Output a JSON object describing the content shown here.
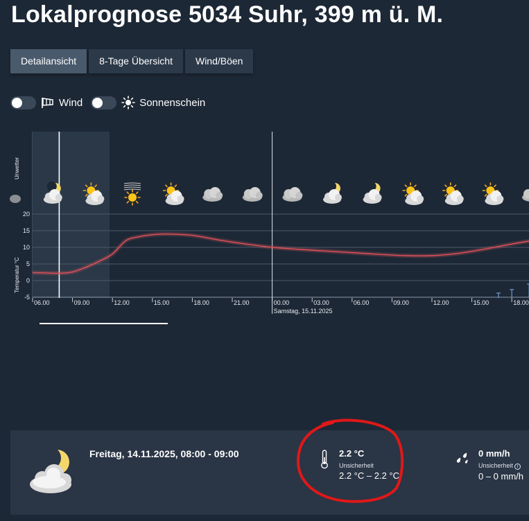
{
  "header": {
    "title": "Lokalprognose 5034 Suhr, 399 m ü. M."
  },
  "tabs": [
    {
      "label": "Detailansicht",
      "active": true
    },
    {
      "label": "8-Tage Übersicht",
      "active": false
    },
    {
      "label": "Wind/Böen",
      "active": false
    }
  ],
  "toggles": [
    {
      "label": "Wind",
      "icon": "windsock-icon",
      "on": false
    },
    {
      "label": "Sonnenschein",
      "icon": "sun-icon",
      "on": false
    }
  ],
  "chart_data": {
    "type": "line",
    "ylabel": "Temperatur °C",
    "row_label": "Unwetter",
    "yticks": [
      "20",
      "15",
      "10",
      "5",
      "0",
      "-5"
    ],
    "ylim": [
      -5,
      22
    ],
    "x_unit": "hours since Friday 06:00",
    "xticks": [
      "06.00",
      "09.00",
      "12.00",
      "15.00",
      "18.00",
      "21.00",
      "00.00",
      "03.00",
      "06.00",
      "09.00",
      "12.00",
      "15.00",
      "18.00"
    ],
    "day_label": "Samstag, 15.11.2025",
    "series": [
      {
        "name": "Temperatur",
        "x": [
          0,
          1,
          2,
          3,
          4,
          5,
          6,
          7,
          8,
          9,
          10,
          12,
          14,
          16,
          18,
          20,
          22,
          24,
          26,
          28,
          30,
          32,
          34,
          36,
          38,
          40,
          42,
          44,
          46,
          48
        ],
        "y": [
          2.4,
          2.3,
          2.2,
          2.6,
          4.0,
          5.8,
          8.0,
          12.0,
          13.2,
          13.8,
          14.0,
          13.6,
          12.2,
          11.0,
          10.0,
          9.4,
          8.9,
          8.4,
          7.9,
          7.5,
          7.5,
          8.2,
          9.5,
          11.0,
          12.3,
          13.2,
          13.3,
          12.9,
          11.8,
          10.8
        ]
      }
    ],
    "current_hour_x": 2,
    "weather_icons": [
      {
        "x": 1.5,
        "icon": "moon-cloud-icon"
      },
      {
        "x": 4.5,
        "icon": "sun-cloud-icon"
      },
      {
        "x": 7.5,
        "icon": "sun-fog-icon"
      },
      {
        "x": 10.5,
        "icon": "sun-cloud-icon"
      },
      {
        "x": 13.5,
        "icon": "cloud-icon"
      },
      {
        "x": 16.5,
        "icon": "cloud-icon"
      },
      {
        "x": 19.5,
        "icon": "cloud-icon"
      },
      {
        "x": 22.5,
        "icon": "moon-cloud-icon"
      },
      {
        "x": 25.5,
        "icon": "moon-cloud-icon"
      },
      {
        "x": 28.5,
        "icon": "sun-cloud-icon"
      },
      {
        "x": 31.5,
        "icon": "sun-cloud-icon"
      },
      {
        "x": 34.5,
        "icon": "sun-cloud-icon"
      },
      {
        "x": 37.5,
        "icon": "cloud-icon"
      }
    ]
  },
  "details": {
    "date": "Freitag, 14.11.2025, 08:00 - 09:00",
    "icon": "moon-cloud-icon",
    "temperature": {
      "value": "2.2 °C",
      "uncertainty_label": "Unsicherheit",
      "range": "2.2 °C – 2.2 °C"
    },
    "precipitation": {
      "value": "0 mm/h",
      "uncertainty_label": "Unsicherheit",
      "range": "0 – 0 mm/h"
    }
  },
  "colors": {
    "background": "#1d2836",
    "panel": "#2a3545",
    "tab": "#2c3949",
    "tab_active": "#4a5a6d",
    "line": "#e0525a",
    "annotation": "#e01818"
  }
}
